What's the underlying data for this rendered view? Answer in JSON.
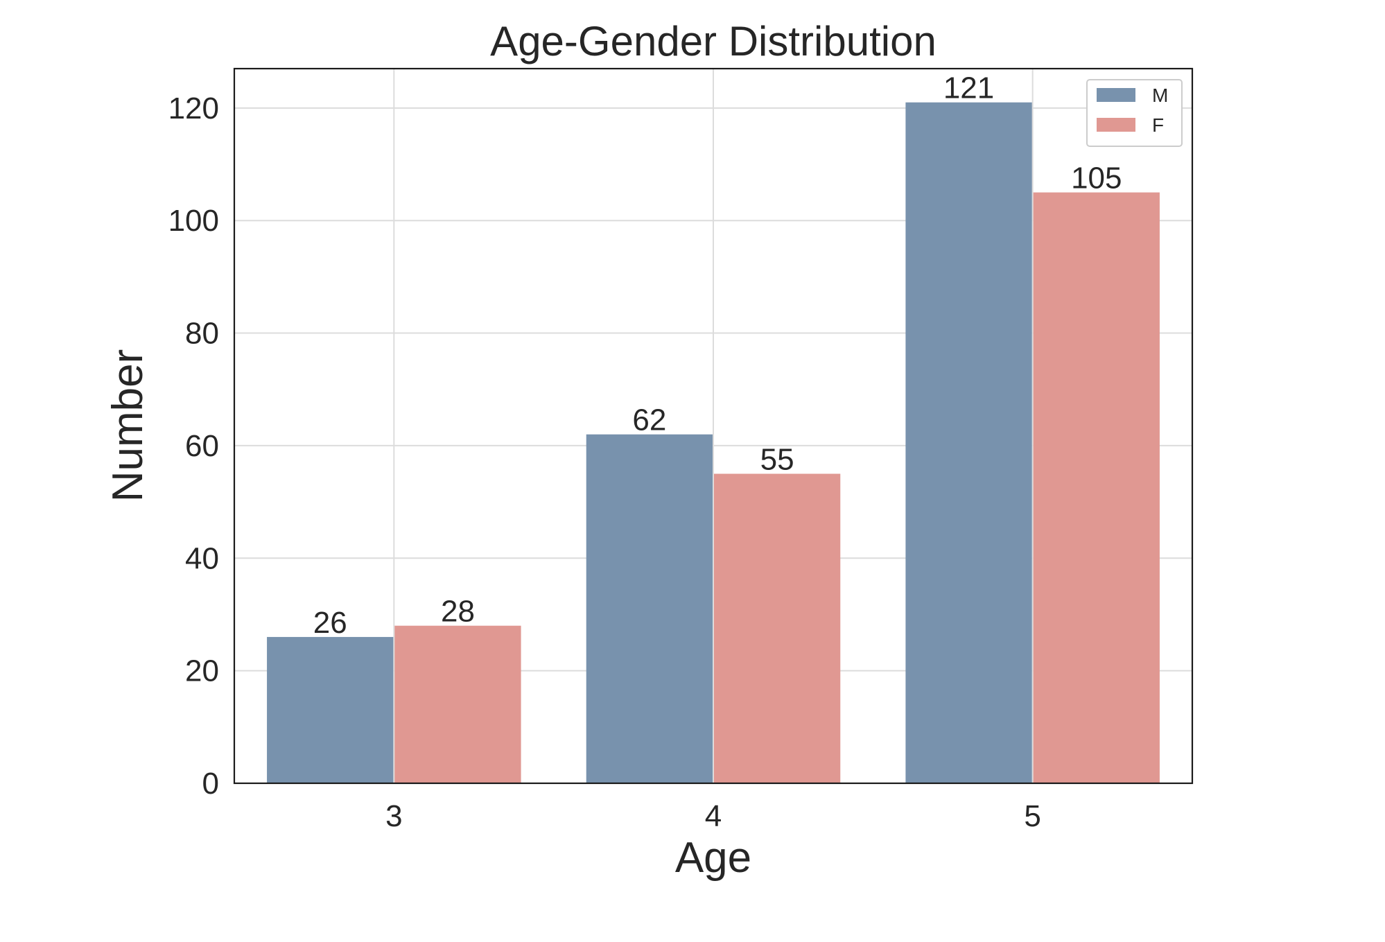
{
  "chart_data": {
    "type": "bar",
    "title": "Age-Gender Distribution",
    "xlabel": "Age",
    "ylabel": "Number",
    "categories": [
      "3",
      "4",
      "5"
    ],
    "series": [
      {
        "name": "M",
        "values": [
          26,
          62,
          121
        ],
        "color": "#7892ad"
      },
      {
        "name": "F",
        "values": [
          28,
          55,
          105
        ],
        "color": "#e09892"
      }
    ],
    "ylim": [
      0,
      127
    ],
    "yticks": [
      0,
      20,
      40,
      60,
      80,
      100,
      120
    ],
    "grid": true,
    "legend_position": "top-right",
    "data_labels": true
  }
}
